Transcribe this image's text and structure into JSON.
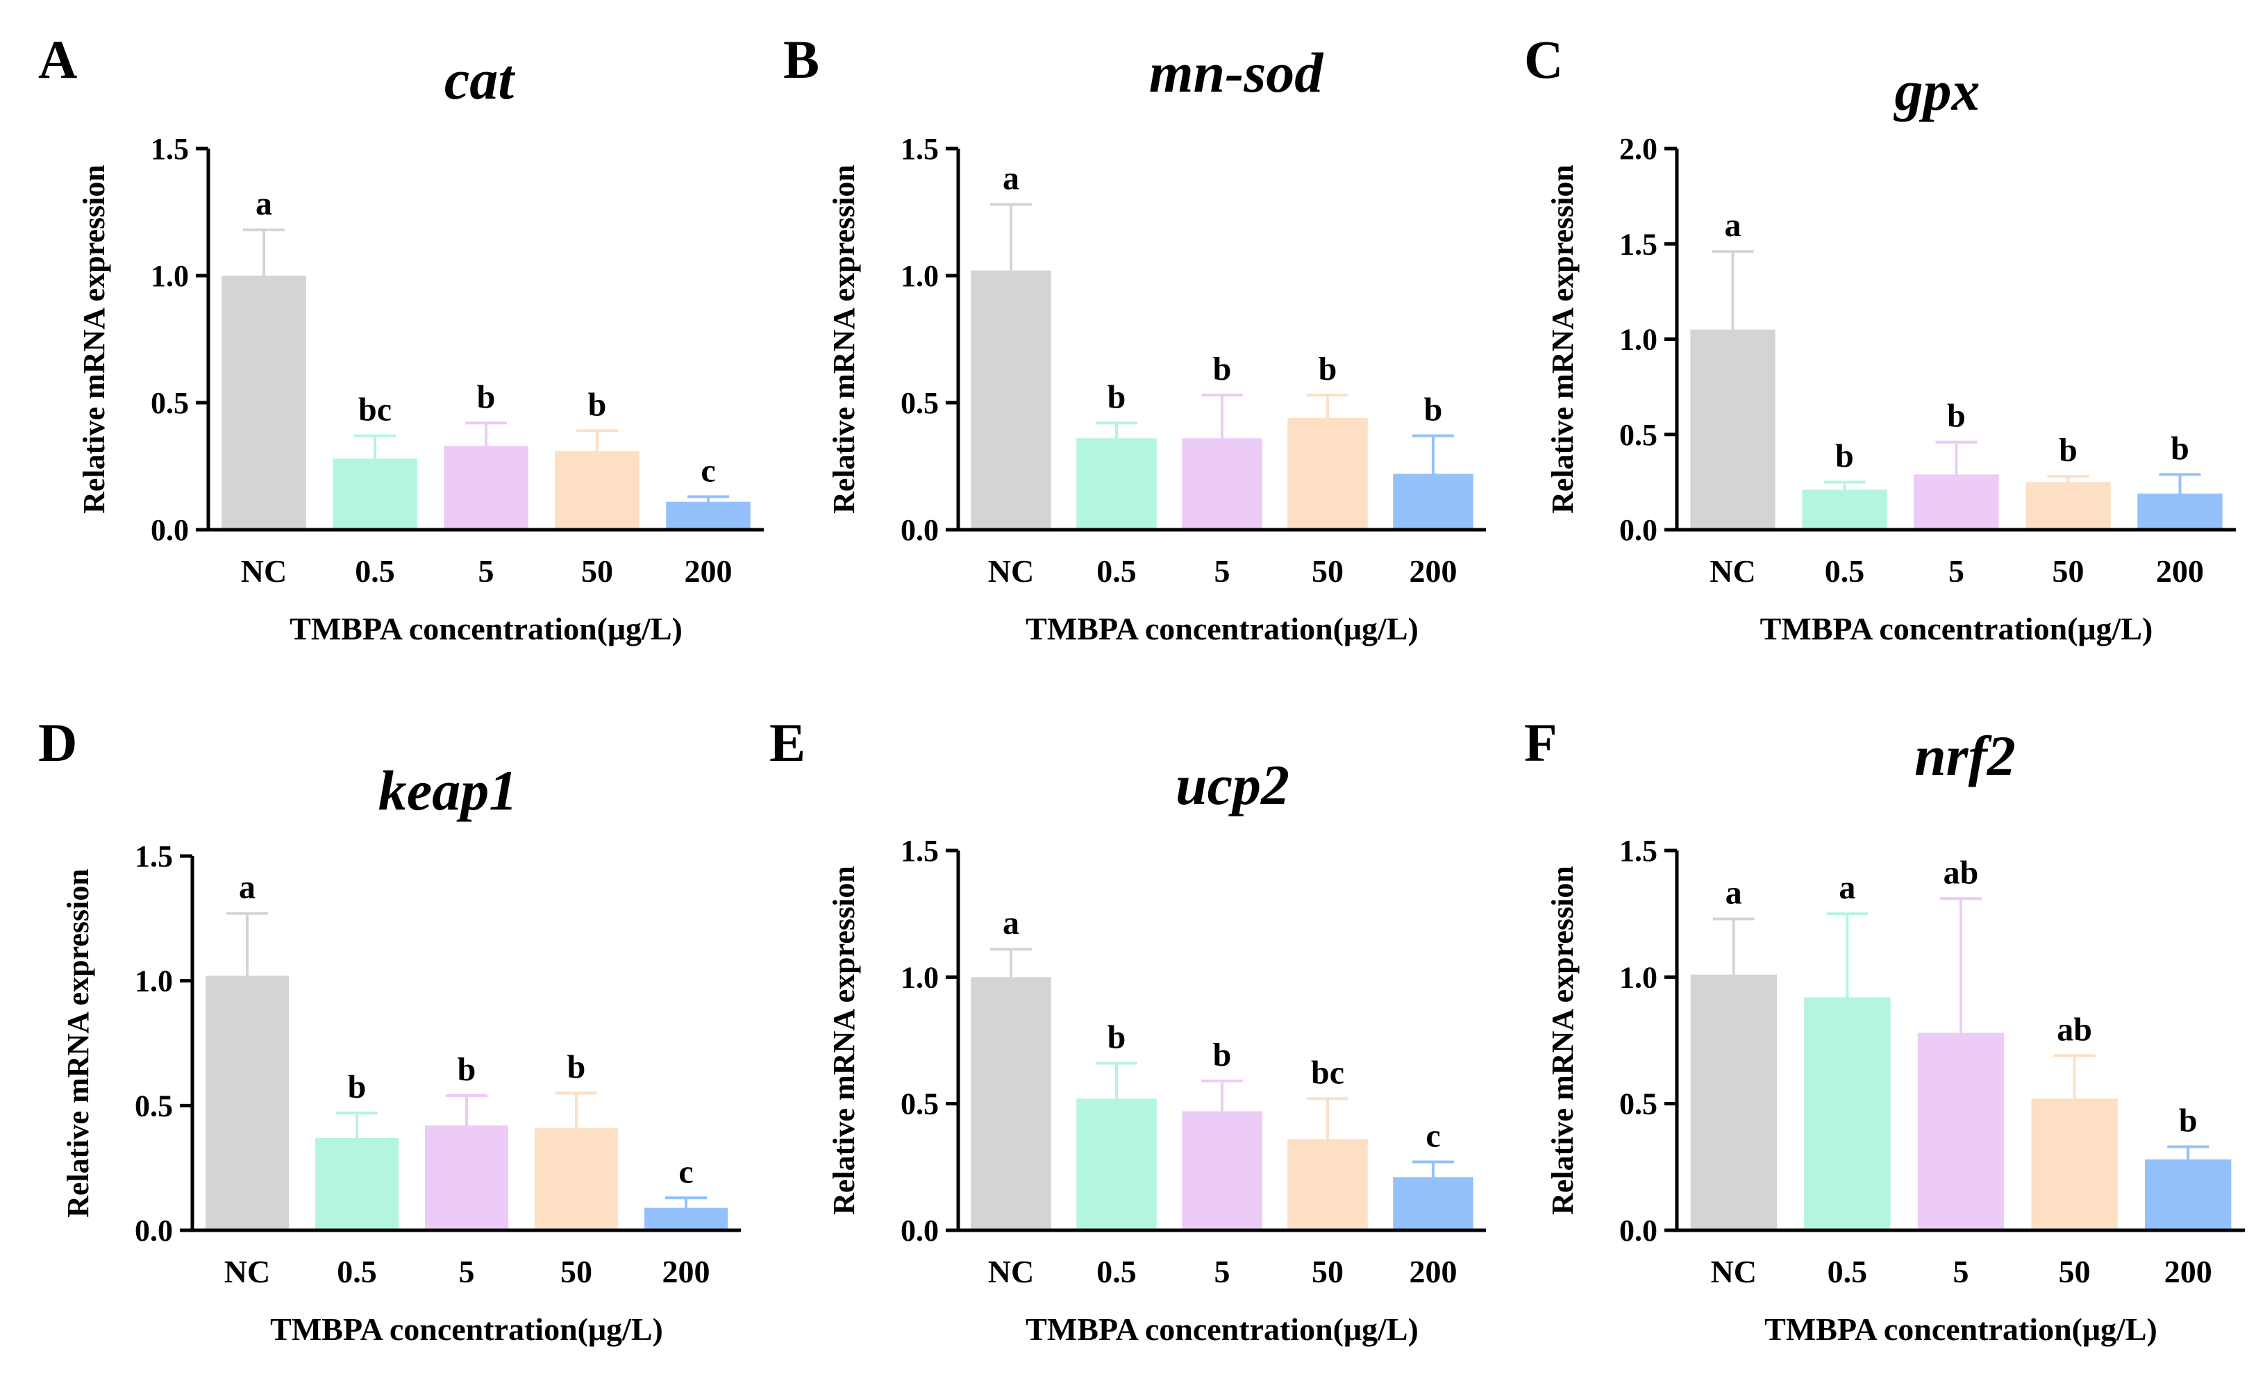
{
  "figure": {
    "xlabel": "TMBPA concentration(μg/L)",
    "ylabel": "Relative mRNA expression",
    "categories": [
      "NC",
      "0.5",
      "5",
      "50",
      "200"
    ],
    "colors": [
      "#d4d4d4",
      "#b4f5df",
      "#eccbf7",
      "#fddfc4",
      "#94c0fb"
    ]
  },
  "chart_data": [
    {
      "type": "bar",
      "letter": "A",
      "title": "cat",
      "categories": [
        "NC",
        "0.5",
        "5",
        "50",
        "200"
      ],
      "values": [
        1.0,
        0.28,
        0.33,
        0.31,
        0.11
      ],
      "errors": [
        0.18,
        0.09,
        0.09,
        0.08,
        0.02
      ],
      "sig": [
        "a",
        "bc",
        "b",
        "b",
        "c"
      ],
      "ylim": [
        0,
        1.5
      ],
      "yticks": [
        "0.0",
        "0.5",
        "1.0",
        "1.5"
      ],
      "xlabel": "TMBPA concentration(μg/L)",
      "ylabel": "Relative mRNA expression"
    },
    {
      "type": "bar",
      "letter": "B",
      "title": "mn-sod",
      "categories": [
        "NC",
        "0.5",
        "5",
        "50",
        "200"
      ],
      "values": [
        1.02,
        0.36,
        0.36,
        0.44,
        0.22
      ],
      "errors": [
        0.26,
        0.06,
        0.17,
        0.09,
        0.15
      ],
      "sig": [
        "a",
        "b",
        "b",
        "b",
        "b"
      ],
      "ylim": [
        0,
        1.5
      ],
      "yticks": [
        "0.0",
        "0.5",
        "1.0",
        "1.5"
      ],
      "xlabel": "TMBPA concentration(μg/L)",
      "ylabel": "Relative mRNA expression"
    },
    {
      "type": "bar",
      "letter": "C",
      "title": "gpx",
      "categories": [
        "NC",
        "0.5",
        "5",
        "50",
        "200"
      ],
      "values": [
        1.05,
        0.21,
        0.29,
        0.25,
        0.19
      ],
      "errors": [
        0.41,
        0.04,
        0.17,
        0.03,
        0.1
      ],
      "sig": [
        "a",
        "b",
        "b",
        "b",
        "b"
      ],
      "ylim": [
        0,
        2.0
      ],
      "yticks": [
        "0.0",
        "0.5",
        "1.0",
        "1.5",
        "2.0"
      ],
      "xlabel": "TMBPA concentration(μg/L)",
      "ylabel": "Relative mRNA expression"
    },
    {
      "type": "bar",
      "letter": "D",
      "title": "keap1",
      "categories": [
        "NC",
        "0.5",
        "5",
        "50",
        "200"
      ],
      "values": [
        1.02,
        0.37,
        0.42,
        0.41,
        0.09
      ],
      "errors": [
        0.25,
        0.1,
        0.12,
        0.14,
        0.04
      ],
      "sig": [
        "a",
        "b",
        "b",
        "b",
        "c"
      ],
      "ylim": [
        0,
        1.5
      ],
      "yticks": [
        "0.0",
        "0.5",
        "1.0",
        "1.5"
      ],
      "xlabel": "TMBPA concentration(μg/L)",
      "ylabel": "Relative mRNA expression"
    },
    {
      "type": "bar",
      "letter": "E",
      "title": "ucp2",
      "categories": [
        "NC",
        "0.5",
        "5",
        "50",
        "200"
      ],
      "values": [
        1.0,
        0.52,
        0.47,
        0.36,
        0.21
      ],
      "errors": [
        0.11,
        0.14,
        0.12,
        0.16,
        0.06
      ],
      "sig": [
        "a",
        "b",
        "b",
        "bc",
        "c"
      ],
      "ylim": [
        0,
        1.5
      ],
      "yticks": [
        "0.0",
        "0.5",
        "1.0",
        "1.5"
      ],
      "xlabel": "TMBPA concentration(μg/L)",
      "ylabel": "Relative mRNA expression"
    },
    {
      "type": "bar",
      "letter": "F",
      "title": "nrf2",
      "categories": [
        "NC",
        "0.5",
        "5",
        "50",
        "200"
      ],
      "values": [
        1.01,
        0.92,
        0.78,
        0.52,
        0.28
      ],
      "errors": [
        0.22,
        0.33,
        0.53,
        0.17,
        0.05
      ],
      "sig": [
        "a",
        "a",
        "ab",
        "ab",
        "b"
      ],
      "ylim": [
        0,
        1.5
      ],
      "yticks": [
        "0.0",
        "0.5",
        "1.0",
        "1.5"
      ],
      "xlabel": "TMBPA concentration(μg/L)",
      "ylabel": "Relative mRNA expression"
    }
  ]
}
